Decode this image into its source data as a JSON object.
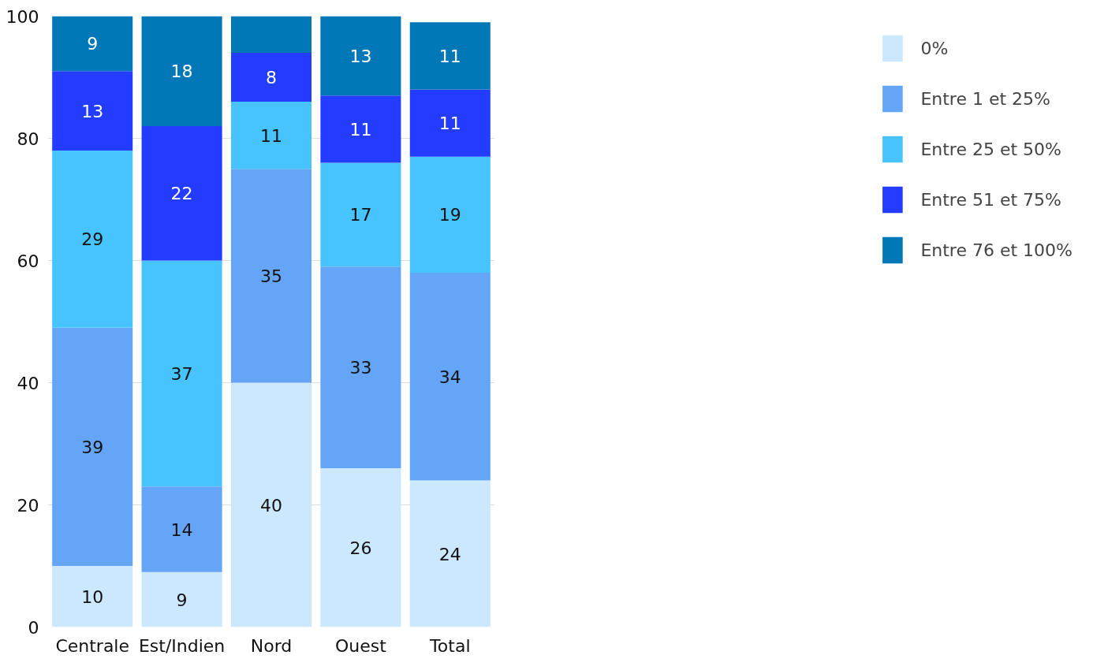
{
  "chart_data": {
    "type": "bar",
    "stacked": true,
    "categories": [
      "Centrale",
      "Est/Indien",
      "Nord",
      "Ouest",
      "Total"
    ],
    "series": [
      {
        "name": "0%",
        "color": "#cce8fe",
        "values": [
          10,
          9,
          40,
          26,
          24
        ],
        "value_labels": [
          "10",
          "9",
          "40",
          "26",
          "24"
        ]
      },
      {
        "name": "Entre 1 et 25%",
        "color": "#64a5f7",
        "values": [
          39,
          14,
          35,
          33,
          34
        ],
        "value_labels": [
          "39",
          "14",
          "35",
          "33",
          "34"
        ]
      },
      {
        "name": "Entre 25 et 50%",
        "color": "#47c3fd",
        "values": [
          29,
          37,
          11,
          17,
          19
        ],
        "value_labels": [
          "29",
          "37",
          "11",
          "17",
          "19"
        ]
      },
      {
        "name": "Entre 51 et 75%",
        "color": "#233cff",
        "values": [
          13,
          22,
          8,
          11,
          11
        ],
        "value_labels": [
          "13",
          "22",
          "8",
          "11",
          "11"
        ]
      },
      {
        "name": "Entre 76 et 100%",
        "color": "#0077b6",
        "values": [
          9,
          18,
          6,
          13,
          11
        ],
        "value_labels": [
          "9",
          "18",
          null,
          "13",
          "11"
        ]
      }
    ],
    "ylim": [
      0,
      100
    ],
    "yticks": [
      0,
      20,
      40,
      60,
      80,
      100
    ],
    "grid": "y",
    "legend": "right"
  }
}
